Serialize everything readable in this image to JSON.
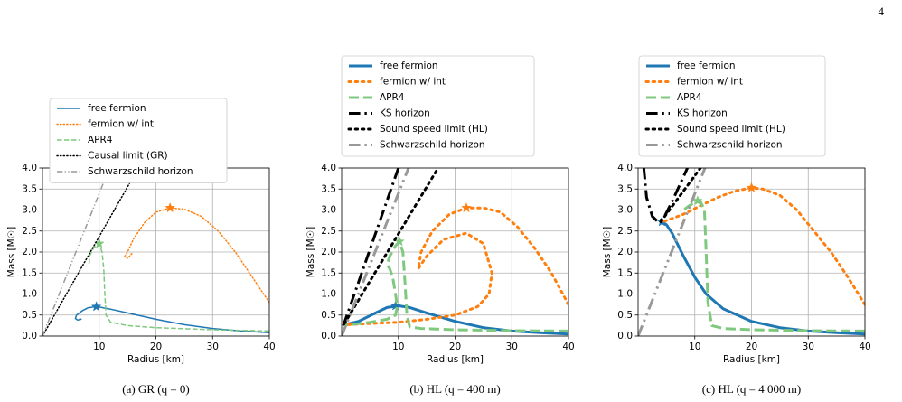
{
  "page_number": "4",
  "chart_data": [
    {
      "type": "line",
      "caption": "(a)  GR (q = 0)",
      "xlabel": "Radius [km]",
      "ylabel": "Mass [M☉]",
      "xlim": [
        0,
        40
      ],
      "ylim": [
        0,
        4
      ],
      "xticks": [
        10,
        20,
        30,
        40
      ],
      "yticks": [
        {
          "value": 0,
          "label": "0.0"
        },
        {
          "value": 0.5,
          "label": "0.5"
        },
        {
          "value": 1,
          "label": "1.0"
        },
        {
          "value": 1.5,
          "label": "1.5"
        },
        {
          "value": 2,
          "label": "2.0"
        },
        {
          "value": 2.5,
          "label": "2.5"
        },
        {
          "value": 3,
          "label": "3.0"
        },
        {
          "value": 3.5,
          "label": "3.5"
        },
        {
          "value": 4,
          "label": "4.0"
        }
      ],
      "grid": true,
      "linewidth": 1.5,
      "series": [
        {
          "name": "free fermion",
          "color": "#1f77b4",
          "dash": "solid",
          "x": [
            40,
            35,
            30,
            25,
            20,
            15,
            12,
            10,
            9.5,
            8,
            7,
            6,
            5.8,
            6.2,
            6.8,
            6.5
          ],
          "values": [
            0.08,
            0.12,
            0.18,
            0.27,
            0.4,
            0.55,
            0.64,
            0.69,
            0.7,
            0.67,
            0.6,
            0.5,
            0.42,
            0.38,
            0.4,
            0.42
          ],
          "star": {
            "x": 9.5,
            "y": 0.7
          }
        },
        {
          "name": "fermion w/ int",
          "color": "#ff7f0e",
          "dash": "dotted",
          "x": [
            40,
            37,
            34,
            31,
            28,
            25,
            22.5,
            20,
            18,
            16,
            15,
            14.5,
            15,
            16
          ],
          "values": [
            0.8,
            1.4,
            2.0,
            2.5,
            2.85,
            3.02,
            3.05,
            2.95,
            2.7,
            2.3,
            2.0,
            1.9,
            1.85,
            2.0
          ],
          "star": {
            "x": 22.5,
            "y": 3.05
          }
        },
        {
          "name": "APR4",
          "color": "#7fc97f",
          "dash": "dashed",
          "x": [
            40,
            30,
            20,
            15,
            12,
            11.2,
            11,
            10.8,
            10.5,
            10,
            9,
            8.3,
            8.2
          ],
          "values": [
            0.12,
            0.15,
            0.2,
            0.25,
            0.33,
            0.5,
            1.0,
            1.6,
            2.0,
            2.2,
            2.1,
            1.9,
            1.7
          ],
          "star": {
            "x": 10,
            "y": 2.2
          }
        },
        {
          "name": "Causal limit (GR)",
          "color": "#000000",
          "dash": "dotted",
          "x": [
            0,
            16.9
          ],
          "values": [
            0,
            4
          ]
        },
        {
          "name": "Schwarzschild horizon",
          "color": "#999999",
          "dash": "dashdotdot",
          "x": [
            0,
            11.8
          ],
          "values": [
            0,
            4
          ]
        }
      ]
    },
    {
      "type": "line",
      "caption": "(b)  HL (q = 400 m)",
      "xlabel": "Radius [km]",
      "ylabel": "Mass [M☉]",
      "xlim": [
        0,
        40
      ],
      "ylim": [
        0,
        4
      ],
      "xticks": [
        10,
        20,
        30,
        40
      ],
      "yticks": [
        {
          "value": 0,
          "label": "0.0"
        },
        {
          "value": 0.5,
          "label": "0.5"
        },
        {
          "value": 1,
          "label": "1.0"
        },
        {
          "value": 1.5,
          "label": "1.5"
        },
        {
          "value": 2,
          "label": "2.0"
        },
        {
          "value": 2.5,
          "label": "2.5"
        },
        {
          "value": 3,
          "label": "3.0"
        },
        {
          "value": 3.5,
          "label": "3.5"
        },
        {
          "value": 4,
          "label": "4.0"
        }
      ],
      "grid": true,
      "linewidth": 3,
      "series": [
        {
          "name": "free fermion",
          "color": "#1f77b4",
          "dash": "solid",
          "x": [
            0.5,
            3,
            6,
            8,
            10,
            12,
            15,
            20,
            25,
            30,
            35,
            40
          ],
          "values": [
            0.27,
            0.35,
            0.55,
            0.68,
            0.72,
            0.68,
            0.55,
            0.35,
            0.2,
            0.12,
            0.08,
            0.05
          ],
          "star": {
            "x": 9.5,
            "y": 0.72
          }
        },
        {
          "name": "fermion w/ int",
          "color": "#ff7f0e",
          "dash": "dotted",
          "x": [
            40,
            37,
            34,
            31,
            28,
            25,
            22,
            19,
            16,
            14,
            13.5,
            15,
            18,
            22,
            25,
            26.5,
            26,
            24,
            20,
            15,
            10,
            5,
            1
          ],
          "values": [
            0.75,
            1.5,
            2.1,
            2.6,
            2.95,
            3.05,
            3.05,
            2.9,
            2.5,
            2.0,
            1.6,
            1.9,
            2.3,
            2.45,
            2.2,
            1.5,
            1.0,
            0.7,
            0.5,
            0.4,
            0.33,
            0.3,
            0.27
          ],
          "star": {
            "x": 22,
            "y": 3.05
          }
        },
        {
          "name": "APR4",
          "color": "#7fc97f",
          "dash": "dashed",
          "x": [
            40,
            30,
            20,
            14,
            12,
            11.5,
            11.2,
            10.8,
            10.2,
            9.5,
            8.5,
            8,
            8.5,
            9,
            9.5,
            9.8,
            9.5,
            8,
            5,
            2,
            0.5
          ],
          "values": [
            0.12,
            0.13,
            0.15,
            0.18,
            0.22,
            0.5,
            1.2,
            2.0,
            2.25,
            2.15,
            1.9,
            1.7,
            1.6,
            1.4,
            1.0,
            0.7,
            0.5,
            0.4,
            0.33,
            0.28,
            0.26
          ],
          "star": {
            "x": 10.2,
            "y": 2.25
          }
        },
        {
          "name": "KS horizon",
          "color": "#000000",
          "dash": "dashdot",
          "x": [
            0.3,
            10
          ],
          "values": [
            0.25,
            4
          ]
        },
        {
          "name": "Sound speed limit (HL)",
          "color": "#000000",
          "dash": "dotted",
          "x": [
            0.5,
            17
          ],
          "values": [
            0.3,
            4
          ]
        },
        {
          "name": "Schwarzschild horizon",
          "color": "#999999",
          "dash": "dashdotdot",
          "x": [
            0,
            11.8
          ],
          "values": [
            0,
            4
          ]
        }
      ]
    },
    {
      "type": "line",
      "caption": "(c)  HL (q = 4 000 m)",
      "xlabel": "Radius [km]",
      "ylabel": "Mass [M☉]",
      "xlim": [
        0,
        40
      ],
      "ylim": [
        0,
        4
      ],
      "xticks": [
        10,
        20,
        30,
        40
      ],
      "yticks": [
        {
          "value": 0,
          "label": "0.0"
        },
        {
          "value": 0.5,
          "label": "0.5"
        },
        {
          "value": 1,
          "label": "1.0"
        },
        {
          "value": 1.5,
          "label": "1.5"
        },
        {
          "value": 2,
          "label": "2.0"
        },
        {
          "value": 2.5,
          "label": "2.5"
        },
        {
          "value": 3,
          "label": "3.0"
        },
        {
          "value": 3.5,
          "label": "3.5"
        },
        {
          "value": 4,
          "label": "4.0"
        }
      ],
      "grid": true,
      "linewidth": 3,
      "series": [
        {
          "name": "free fermion",
          "color": "#1f77b4",
          "dash": "solid",
          "x": [
            40,
            35,
            30,
            25,
            20,
            15,
            12,
            10,
            8,
            6,
            5,
            4.2,
            3.8
          ],
          "values": [
            0.05,
            0.08,
            0.12,
            0.2,
            0.35,
            0.65,
            1.0,
            1.4,
            1.9,
            2.45,
            2.65,
            2.72,
            2.7
          ],
          "star": {
            "x": 4.2,
            "y": 2.72
          }
        },
        {
          "name": "fermion w/ int",
          "color": "#ff7f0e",
          "dash": "dotted",
          "x": [
            40,
            37,
            34,
            31,
            28,
            25,
            22,
            20,
            17,
            14,
            11,
            8,
            5,
            4
          ],
          "values": [
            0.75,
            1.4,
            2.0,
            2.5,
            3.0,
            3.35,
            3.5,
            3.53,
            3.45,
            3.3,
            3.1,
            2.9,
            2.75,
            2.7
          ],
          "star": {
            "x": 20,
            "y": 3.53
          }
        },
        {
          "name": "APR4",
          "color": "#7fc97f",
          "dash": "dashed",
          "x": [
            40,
            30,
            20,
            15,
            13,
            12.3,
            12,
            11.7,
            11,
            10.5,
            9,
            7.5
          ],
          "values": [
            0.12,
            0.13,
            0.15,
            0.18,
            0.25,
            0.8,
            2.0,
            3.0,
            3.2,
            3.22,
            3.1,
            2.95
          ],
          "star": {
            "x": 10.5,
            "y": 3.22
          }
        },
        {
          "name": "KS horizon",
          "color": "#000000",
          "dash": "dashdot",
          "x": [
            1,
            1.5,
            2.5,
            3.5,
            4.5,
            6,
            8.7
          ],
          "values": [
            4.0,
            3.3,
            2.85,
            2.72,
            2.8,
            3.2,
            4.0
          ]
        },
        {
          "name": "Sound speed limit (HL)",
          "color": "#000000",
          "dash": "dotted",
          "x": [
            4,
            11
          ],
          "values": [
            2.72,
            4
          ]
        },
        {
          "name": "Schwarzschild horizon",
          "color": "#999999",
          "dash": "dashdotdot",
          "x": [
            0,
            11.8
          ],
          "values": [
            0,
            4
          ]
        }
      ]
    }
  ]
}
